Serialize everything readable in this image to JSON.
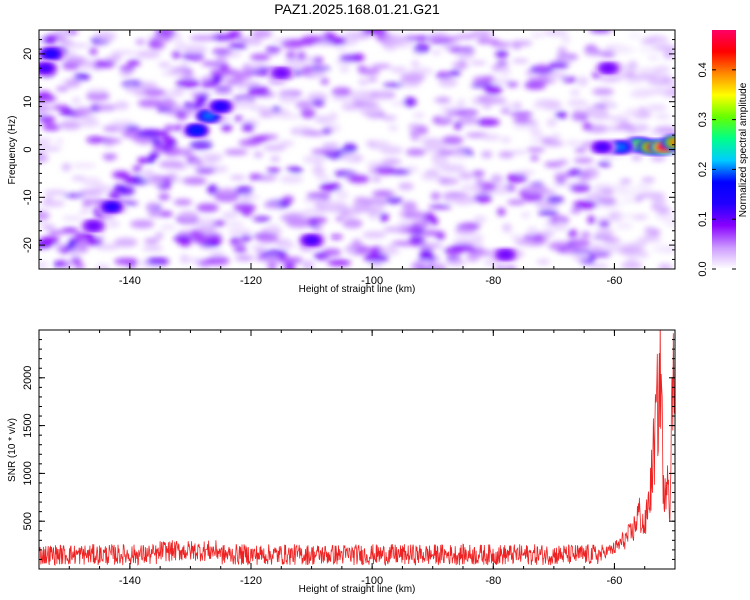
{
  "title": "PAZ1.2025.168.01.21.G21",
  "chart_data": [
    {
      "type": "heatmap",
      "xlabel": "Height of straight line (km)",
      "ylabel": "Frequency (Hz)",
      "xlim": [
        -155,
        -50
      ],
      "ylim": [
        -25,
        25
      ],
      "xticks": [
        -140,
        -120,
        -100,
        -80,
        -60
      ],
      "yticks": [
        20,
        10,
        0,
        -10,
        -20
      ],
      "colorbar": {
        "label": "Normalized spectral amplitude",
        "range": [
          0.0,
          0.48
        ],
        "ticks": [
          0.0,
          0.1,
          0.2,
          0.3,
          0.4
        ],
        "colors": [
          "#ffffff",
          "#cc99ff",
          "#8800ff",
          "#2200ff",
          "#0000ff",
          "#00ccff",
          "#00ff88",
          "#66ff00",
          "#ffff00",
          "#ff8800",
          "#ff0000",
          "#ff0066"
        ]
      },
      "hotspots": [
        {
          "x": -127,
          "y": 7,
          "value": 0.2
        },
        {
          "x": -129,
          "y": 4,
          "value": 0.18
        },
        {
          "x": -125,
          "y": 9,
          "value": 0.15
        },
        {
          "x": -153,
          "y": 20,
          "value": 0.15
        },
        {
          "x": -154,
          "y": 17,
          "value": 0.12
        },
        {
          "x": -143,
          "y": -12,
          "value": 0.14
        },
        {
          "x": -146,
          "y": -16,
          "value": 0.1
        },
        {
          "x": -110,
          "y": -19,
          "value": 0.12
        },
        {
          "x": -78,
          "y": -22,
          "value": 0.1
        },
        {
          "x": -56,
          "y": 1,
          "value": 0.3
        },
        {
          "x": -54,
          "y": 0.5,
          "value": 0.4
        },
        {
          "x": -52,
          "y": 0.5,
          "value": 0.47
        },
        {
          "x": -50,
          "y": 1.5,
          "value": 0.4
        },
        {
          "x": -59,
          "y": 0.5,
          "value": 0.2
        },
        {
          "x": -62,
          "y": 0.5,
          "value": 0.12
        },
        {
          "x": -61,
          "y": 17,
          "value": 0.1
        },
        {
          "x": -115,
          "y": 16,
          "value": 0.1
        }
      ]
    },
    {
      "type": "line",
      "xlabel": "Height of straight line (km)",
      "ylabel": "SNR (10 * v/v)",
      "xlim": [
        -155,
        -50
      ],
      "ylim": [
        0,
        2500
      ],
      "xticks": [
        -140,
        -120,
        -100,
        -80,
        -60
      ],
      "yticks": [
        500,
        1000,
        1500,
        2000
      ],
      "color": "#ee2222",
      "noise_floor": {
        "x_range": [
          -155,
          -62
        ],
        "mean": 150,
        "amplitude": 110
      },
      "key_points": [
        {
          "x": -155,
          "y": 130
        },
        {
          "x": -130,
          "y": 260
        },
        {
          "x": -62,
          "y": 200
        },
        {
          "x": -60,
          "y": 250
        },
        {
          "x": -57,
          "y": 450
        },
        {
          "x": -56,
          "y": 700
        },
        {
          "x": -55,
          "y": 500
        },
        {
          "x": -54,
          "y": 1000
        },
        {
          "x": -53,
          "y": 1900
        },
        {
          "x": -52.3,
          "y": 2480
        },
        {
          "x": -51.8,
          "y": 600
        },
        {
          "x": -51.3,
          "y": 1400
        },
        {
          "x": -50.8,
          "y": 800
        },
        {
          "x": -50.4,
          "y": 2350
        },
        {
          "x": -50,
          "y": 2200
        }
      ]
    }
  ]
}
